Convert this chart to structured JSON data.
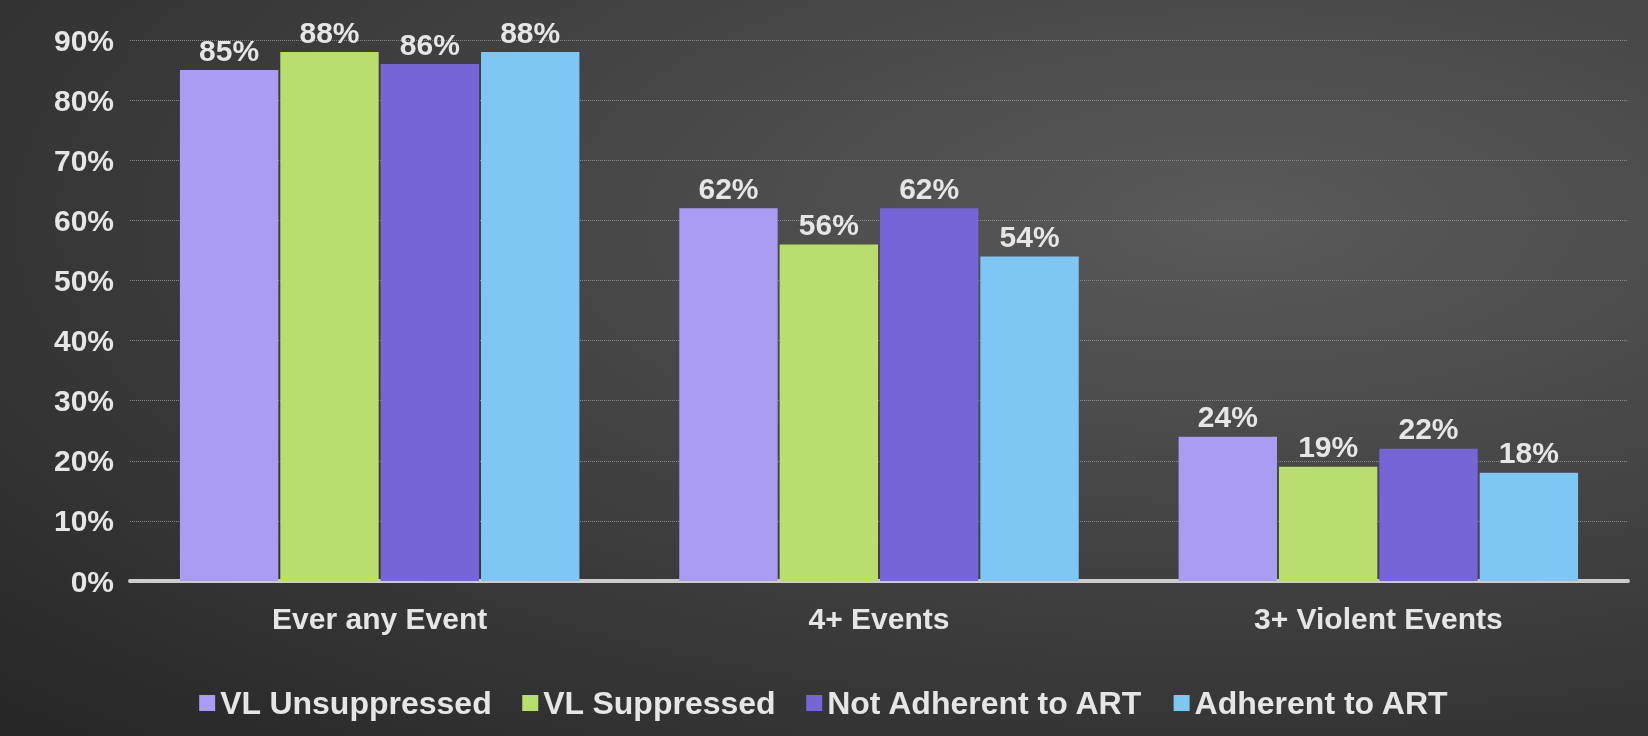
{
  "chart_data": {
    "type": "bar",
    "categories": [
      "Ever any Event",
      "4+ Events",
      "3+ Violent Events"
    ],
    "series": [
      {
        "name": "VL Unsuppressed",
        "color": "#a99cf2",
        "values": [
          85,
          62,
          24
        ],
        "value_labels": [
          "85%",
          "62%",
          "24%"
        ]
      },
      {
        "name": "VL Suppressed",
        "color": "#b9de6e",
        "values": [
          88,
          56,
          19
        ],
        "value_labels": [
          "88%",
          "56%",
          "19%"
        ]
      },
      {
        "name": "Not Adherent to ART",
        "color": "#7565d6",
        "values": [
          86,
          62,
          22
        ],
        "value_labels": [
          "86%",
          "62%",
          "22%"
        ]
      },
      {
        "name": "Adherent to ART",
        "color": "#7ec6f4",
        "values": [
          88,
          54,
          18
        ],
        "value_labels": [
          "88%",
          "54%",
          "18%"
        ]
      }
    ],
    "ylim": [
      0,
      90
    ],
    "yticks": [
      {
        "value": 0,
        "label": "0%"
      },
      {
        "value": 10,
        "label": "10%"
      },
      {
        "value": 20,
        "label": "20%"
      },
      {
        "value": 30,
        "label": "30%"
      },
      {
        "value": 40,
        "label": "40%"
      },
      {
        "value": 50,
        "label": "50%"
      },
      {
        "value": 60,
        "label": "60%"
      },
      {
        "value": 70,
        "label": "70%"
      },
      {
        "value": 80,
        "label": "80%"
      },
      {
        "value": 90,
        "label": "90%"
      }
    ],
    "grid": "y",
    "legend": "bottom"
  }
}
